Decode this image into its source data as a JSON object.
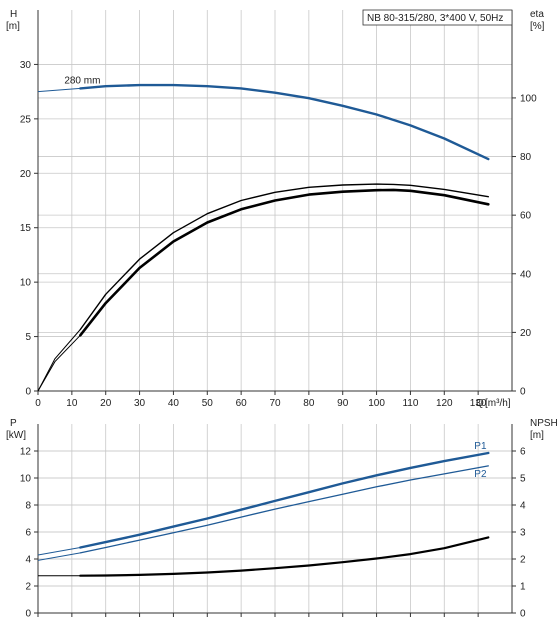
{
  "chart_data": [
    {
      "type": "line",
      "panel": "top",
      "title": "NB 80-315/280, 3*400 V, 50Hz",
      "left_axis": {
        "label": "H",
        "unit": "[m]",
        "ylim": [
          0,
          35
        ],
        "ticks": [
          0,
          5,
          10,
          15,
          20,
          25,
          30
        ]
      },
      "right_axis": {
        "label": "eta",
        "unit": "[%]",
        "ylim": [
          0,
          130
        ],
        "ticks": [
          0,
          20,
          40,
          60,
          80,
          100
        ]
      },
      "x_axis": {
        "label": "Q",
        "unit": "[m³/h]",
        "xlim": [
          0,
          140
        ],
        "ticks": [
          0,
          10,
          20,
          30,
          40,
          50,
          60,
          70,
          80,
          90,
          100,
          110,
          120,
          130
        ]
      },
      "grid": true,
      "series": [
        {
          "name": "280 mm",
          "axis": "left",
          "color": "#1f5a96",
          "dashed_from": 0,
          "solid_from": 12.5,
          "x": [
            0,
            12.5,
            20,
            30,
            40,
            50,
            60,
            70,
            80,
            90,
            100,
            110,
            120,
            133
          ],
          "y": [
            27.5,
            27.8,
            28.0,
            28.1,
            28.1,
            28.0,
            27.8,
            27.4,
            26.9,
            26.2,
            25.4,
            24.4,
            23.2,
            21.3
          ]
        },
        {
          "axis": "right",
          "color": "#000000",
          "dashed_from": 0,
          "solid_from": 12.5,
          "x": [
            0,
            5,
            12.5,
            20,
            30,
            40,
            50,
            60,
            70,
            80,
            90,
            100,
            105,
            110,
            120,
            133
          ],
          "y": [
            0,
            11,
            21,
            33,
            45,
            54,
            60.5,
            65,
            67.8,
            69.5,
            70.3,
            70.6,
            70.5,
            70.2,
            68.8,
            66.3
          ]
        },
        {
          "axis": "right",
          "color": "#000000",
          "dashed_from": 0,
          "solid_from": 12.5,
          "x": [
            0,
            5,
            12.5,
            20,
            30,
            40,
            50,
            60,
            70,
            80,
            90,
            100,
            105,
            110,
            120,
            133
          ],
          "y": [
            0,
            10,
            19,
            30,
            42,
            51,
            57.5,
            62,
            65,
            67.0,
            68.0,
            68.5,
            68.6,
            68.3,
            66.8,
            63.7
          ]
        }
      ]
    },
    {
      "type": "line",
      "panel": "bottom",
      "left_axis": {
        "label": "P",
        "unit": "[kW]",
        "ylim": [
          0,
          14
        ],
        "ticks": [
          0,
          2,
          4,
          6,
          8,
          10,
          12
        ]
      },
      "right_axis": {
        "label": "NPSH",
        "unit": "[m]",
        "ylim": [
          0,
          7
        ],
        "ticks": [
          0,
          1,
          2,
          3,
          4,
          5,
          6
        ]
      },
      "x_axis": {
        "xlim": [
          0,
          140
        ],
        "ticks": [
          0,
          10,
          20,
          30,
          40,
          50,
          60,
          70,
          80,
          90,
          100,
          110,
          120,
          130
        ]
      },
      "grid": true,
      "series": [
        {
          "name": "P1",
          "axis": "left",
          "color": "#1f5a96",
          "solid_from": 12.5,
          "x": [
            0,
            12.5,
            20,
            30,
            40,
            50,
            60,
            70,
            80,
            90,
            100,
            110,
            120,
            133
          ],
          "y": [
            4.3,
            4.85,
            5.25,
            5.8,
            6.4,
            7.0,
            7.65,
            8.3,
            8.95,
            9.6,
            10.2,
            10.75,
            11.25,
            11.85
          ]
        },
        {
          "name": "P2",
          "axis": "left",
          "color": "#1f5a96",
          "solid_from": 12.5,
          "x": [
            0,
            12.5,
            20,
            30,
            40,
            50,
            60,
            70,
            80,
            90,
            100,
            110,
            120,
            133
          ],
          "y": [
            3.9,
            4.45,
            4.85,
            5.4,
            5.95,
            6.5,
            7.1,
            7.7,
            8.25,
            8.8,
            9.35,
            9.85,
            10.3,
            10.9
          ]
        },
        {
          "axis": "right",
          "color": "#000000",
          "solid_from": 12.5,
          "x": [
            0,
            12.5,
            20,
            30,
            40,
            50,
            60,
            70,
            80,
            90,
            100,
            110,
            120,
            133
          ],
          "y": [
            1.38,
            1.38,
            1.39,
            1.41,
            1.45,
            1.5,
            1.57,
            1.66,
            1.76,
            1.88,
            2.02,
            2.18,
            2.4,
            2.8
          ]
        }
      ]
    }
  ]
}
